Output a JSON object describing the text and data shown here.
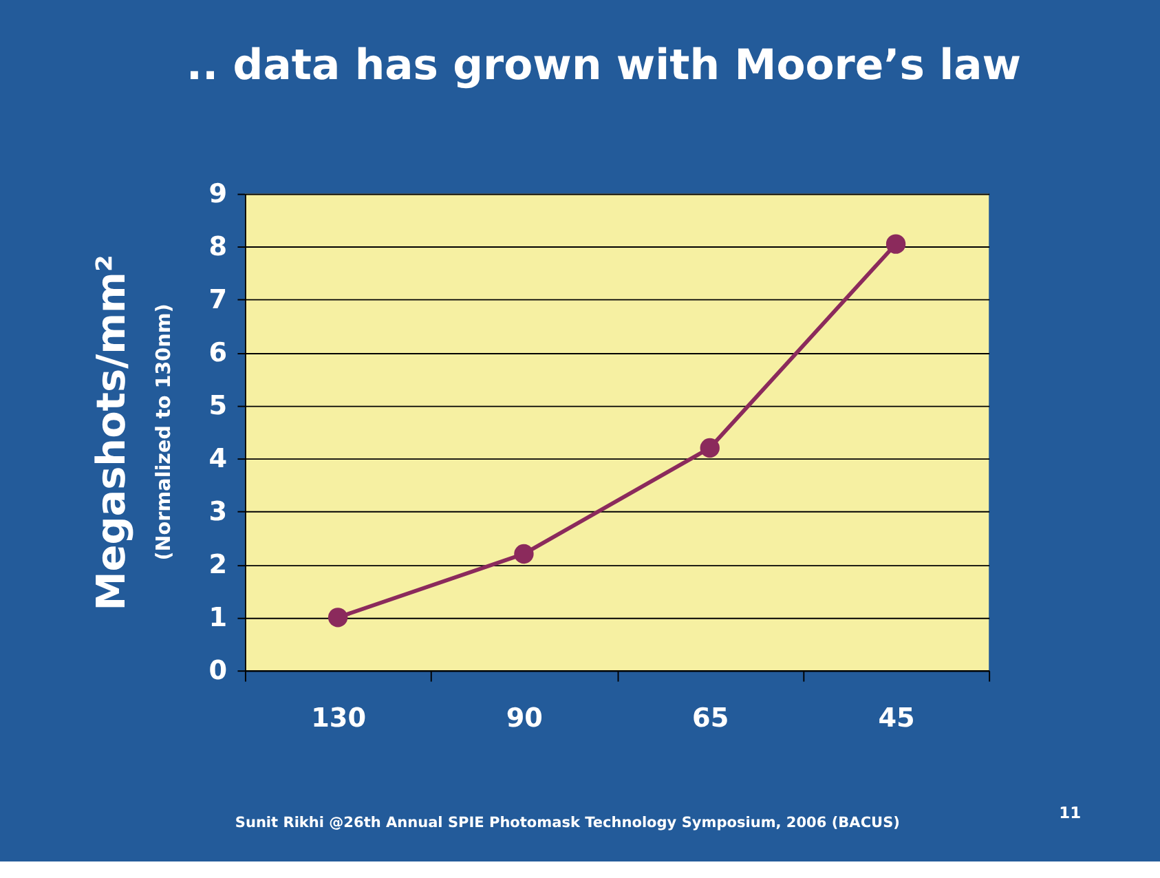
{
  "chart_data": {
    "type": "line",
    "title": ".. data has grown with Moore’s law",
    "ylabel": "Megashots/mm²",
    "categories": [
      "130",
      "90",
      "65",
      "45"
    ],
    "series": [
      {
        "color": "#8b2a5c",
        "values": [
          1,
          2.2,
          4.2,
          8.05
        ]
      }
    ],
    "ylim": [
      0,
      9
    ],
    "yticks": [
      0,
      1,
      2,
      3,
      4,
      5,
      6,
      7,
      8,
      9
    ],
    "grid": "y",
    "marker": "circle",
    "line_style": "solid",
    "annotations": [
      "(Normalized to 130nm)",
      "Sunit Rikhi @26th Annual SPIE Photomask Technology Symposium, 2006 (BACUS)",
      "11"
    ]
  }
}
